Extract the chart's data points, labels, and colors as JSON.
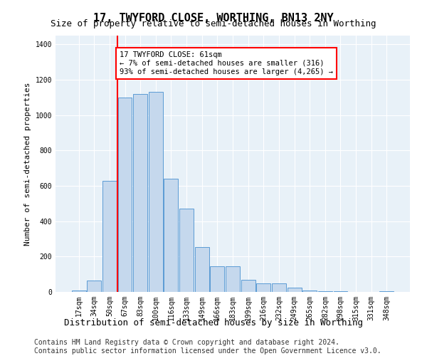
{
  "title": "17, TWYFORD CLOSE, WORTHING, BN13 2NY",
  "subtitle": "Size of property relative to semi-detached houses in Worthing",
  "xlabel": "Distribution of semi-detached houses by size in Worthing",
  "ylabel": "Number of semi-detached properties",
  "bar_labels": [
    "17sqm",
    "34sqm",
    "50sqm",
    "67sqm",
    "83sqm",
    "100sqm",
    "116sqm",
    "133sqm",
    "149sqm",
    "166sqm",
    "183sqm",
    "199sqm",
    "216sqm",
    "232sqm",
    "249sqm",
    "265sqm",
    "282sqm",
    "298sqm",
    "315sqm",
    "331sqm",
    "348sqm"
  ],
  "bar_values": [
    10,
    65,
    630,
    1100,
    1120,
    1130,
    640,
    470,
    255,
    145,
    145,
    70,
    50,
    50,
    25,
    10,
    5,
    5,
    2,
    2,
    5
  ],
  "bar_color": "#c5d8ed",
  "bar_edge_color": "#5b9bd5",
  "vline_pos": 2.5,
  "vline_color": "red",
  "annotation_text": "17 TWYFORD CLOSE: 61sqm\n← 7% of semi-detached houses are smaller (316)\n93% of semi-detached houses are larger (4,265) →",
  "annotation_box_color": "white",
  "annotation_box_edge": "red",
  "ylim": [
    0,
    1450
  ],
  "yticks": [
    0,
    200,
    400,
    600,
    800,
    1000,
    1200,
    1400
  ],
  "footer": "Contains HM Land Registry data © Crown copyright and database right 2024.\nContains public sector information licensed under the Open Government Licence v3.0.",
  "plot_bg_color": "#e8f1f8",
  "title_fontsize": 11,
  "subtitle_fontsize": 9,
  "xlabel_fontsize": 9,
  "ylabel_fontsize": 8,
  "tick_fontsize": 7,
  "footer_fontsize": 7
}
